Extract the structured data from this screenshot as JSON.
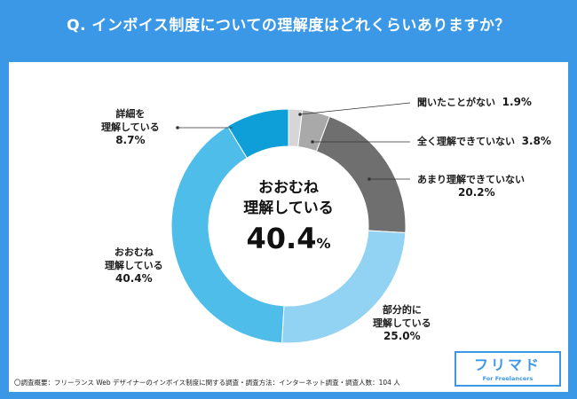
{
  "title": "Q. インボイス制度についての理解度はどれくらいありますか？",
  "note": "〇調査概要：フリーランス Web デザイナーのインボイス制度に関する調査・調査方法：インターネット調査・調査人数：104 人",
  "logo": {
    "name": "フリマド",
    "sub": "For Freelancers"
  },
  "center": {
    "line1": "おおむね",
    "line2": "理解している",
    "value": "40.4",
    "unit": "%"
  },
  "chart_data": {
    "type": "pie",
    "title": "Q. インボイス制度についての理解度はどれくらいありますか？",
    "donut": true,
    "categories": [
      "聞いたことがない",
      "全く理解できていない",
      "あまり理解できていない",
      "部分的に理解している",
      "おおむね理解している",
      "詳細を理解している"
    ],
    "values": [
      1.9,
      3.8,
      20.2,
      25.0,
      40.4,
      8.7
    ],
    "colors": [
      "#d6d6d6",
      "#a9a9a9",
      "#6f6f6f",
      "#92d2f2",
      "#4fbdea",
      "#0e9fd8"
    ],
    "labels": [
      {
        "name": "聞いたことがない",
        "value": "1.9%"
      },
      {
        "name": "全く理解できていない",
        "value": "3.8%"
      },
      {
        "name": "あまり理解できていない",
        "value": "20.2%"
      },
      {
        "name1": "部分的に",
        "name2": "理解している",
        "value": "25.0%"
      },
      {
        "name1": "おおむね",
        "name2": "理解している",
        "value": "40.4%"
      },
      {
        "name1": "詳細を",
        "name2": "理解している",
        "value": "8.7%"
      }
    ]
  }
}
